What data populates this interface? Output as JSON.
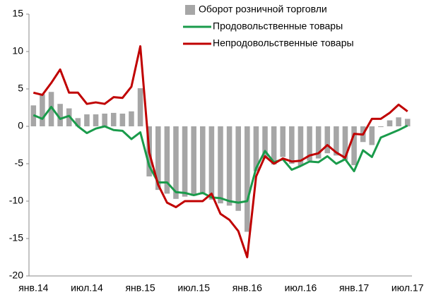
{
  "chart_data": {
    "type": "bar-line",
    "categories": [
      "янв.14",
      null,
      null,
      null,
      null,
      null,
      "июл.14",
      null,
      null,
      null,
      null,
      null,
      "янв.15",
      null,
      null,
      null,
      null,
      null,
      "июл.15",
      null,
      null,
      null,
      null,
      null,
      "янв.16",
      null,
      null,
      null,
      null,
      null,
      "июл.16",
      null,
      null,
      null,
      null,
      null,
      "янв.17",
      null,
      null,
      null,
      null,
      null,
      "июл.17"
    ],
    "series": [
      {
        "name": "Оборот розничной торговли",
        "type": "bar",
        "color": "#a6a6a6",
        "values": [
          2.8,
          4.3,
          4.6,
          3.0,
          2.4,
          1.1,
          1.6,
          1.6,
          1.7,
          1.8,
          1.7,
          2.0,
          5.1,
          -6.7,
          -8.5,
          -9.0,
          -9.7,
          -9.4,
          -9.3,
          -9.1,
          -9.8,
          -10.3,
          -10.6,
          -11.3,
          -14.1,
          -6.0,
          -4.3,
          -5.1,
          -4.1,
          -5.0,
          -5.3,
          -4.6,
          -4.3,
          -3.6,
          -3.9,
          -4.5,
          -5.2,
          -2.1,
          -2.5,
          -0.1,
          0.8,
          1.2,
          1.0
        ]
      },
      {
        "name": "Продовольственные товары",
        "type": "line",
        "color": "#1a9b4b",
        "values": [
          1.5,
          1.0,
          2.6,
          1.0,
          1.4,
          0,
          -0.9,
          -0.3,
          0,
          -0.5,
          -0.6,
          -1.7,
          -0.8,
          -5.3,
          -7.5,
          -7.5,
          -8.8,
          -8.9,
          -9.2,
          -8.9,
          -9.5,
          -9.6,
          -10.0,
          -10.2,
          -10.0,
          -5.6,
          -3.3,
          -4.8,
          -4.4,
          -5.8,
          -5.3,
          -4.7,
          -4.8,
          -4.0,
          -5.0,
          -4.4,
          -6.0,
          -3.2,
          -4.1,
          -1.5,
          -1.0,
          -0.5,
          0.1
        ]
      },
      {
        "name": "Непродовольственные товары",
        "type": "line",
        "color": "#c00000",
        "values": [
          4.5,
          4.2,
          5.8,
          7.6,
          4.5,
          4.5,
          3.0,
          3.2,
          3.0,
          3.9,
          3.8,
          5.3,
          10.7,
          -3.5,
          -7.8,
          -10.2,
          -10.8,
          -10.0,
          -10.0,
          -10.0,
          -9.0,
          -11.7,
          -12.5,
          -14.0,
          -17.5,
          -6.7,
          -4.0,
          -5.0,
          -4.3,
          -4.7,
          -4.6,
          -3.9,
          -3.6,
          -2.5,
          -3.5,
          -4.2,
          -1.0,
          -1.1,
          1.0,
          1.0,
          1.8,
          2.9,
          2.0
        ]
      }
    ],
    "ylim": [
      -20,
      15
    ],
    "yticks": [
      -20,
      -15,
      -10,
      -5,
      0,
      5,
      10,
      15
    ],
    "legend": "upper right"
  }
}
